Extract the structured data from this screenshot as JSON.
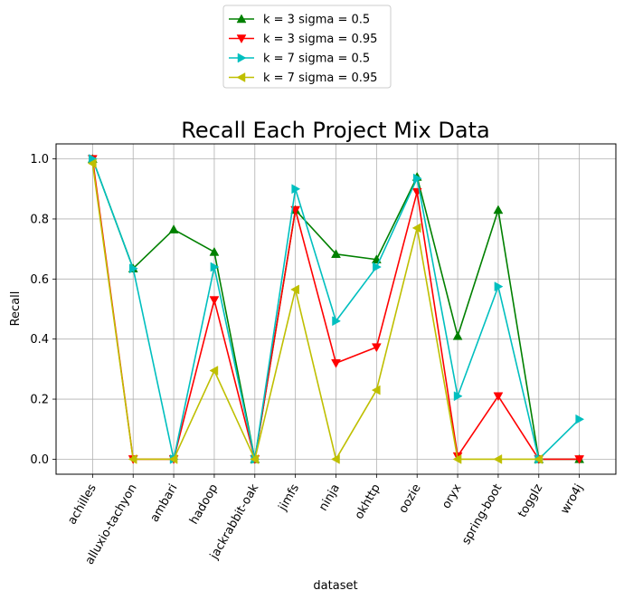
{
  "chart_data": {
    "type": "line",
    "title": "Recall Each Project Mix Data",
    "xlabel": "dataset",
    "ylabel": "Recall",
    "ylim": [
      -0.05,
      1.05
    ],
    "yticks": [
      "0.0",
      "0.2",
      "0.4",
      "0.6",
      "0.8",
      "1.0"
    ],
    "grid": true,
    "legend_position": "top-center",
    "categories": [
      "achilles",
      "alluxio-tachyon",
      "ambari",
      "hadoop",
      "jackrabbit-oak",
      "jimfs",
      "ninja",
      "okhttp",
      "oozie",
      "oryx",
      "spring-boot",
      "togglz",
      "wro4j"
    ],
    "series": [
      {
        "name": "k = 3 sigma = 0.5",
        "color": "#008000",
        "marker": "triangle-up",
        "values": [
          1.0,
          0.635,
          0.765,
          0.69,
          0.0,
          0.83,
          0.683,
          0.665,
          0.94,
          0.41,
          0.83,
          0.0,
          0.0
        ]
      },
      {
        "name": "k = 3 sigma = 0.95",
        "color": "#ff0000",
        "marker": "triangle-down",
        "values": [
          1.0,
          0.0,
          0.0,
          0.53,
          0.0,
          0.83,
          0.32,
          0.373,
          0.89,
          0.01,
          0.21,
          0.0,
          0.0
        ]
      },
      {
        "name": "k = 7 sigma = 0.5",
        "color": "#00bfbf",
        "marker": "triangle-right",
        "values": [
          1.0,
          0.635,
          0.0,
          0.64,
          0.0,
          0.9,
          0.46,
          0.64,
          0.935,
          0.21,
          0.575,
          0.0,
          0.133
        ]
      },
      {
        "name": "k = 7 sigma = 0.95",
        "color": "#bfbf00",
        "marker": "triangle-left",
        "values": [
          0.985,
          0.0,
          0.0,
          0.295,
          0.0,
          0.565,
          0.0,
          0.23,
          0.77,
          0.0,
          0.0,
          0.0,
          null
        ]
      }
    ]
  }
}
